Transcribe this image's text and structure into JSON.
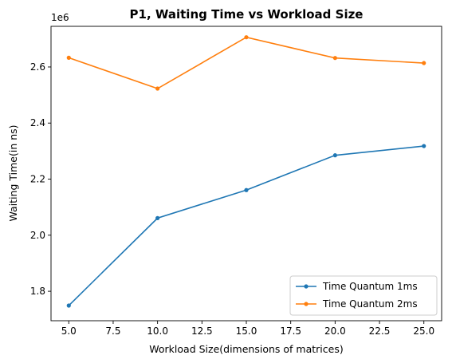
{
  "chart_data": {
    "type": "line",
    "title": "P1, Waiting Time vs Workload Size",
    "xlabel": "Workload Size(dimensions of matrices)",
    "ylabel": "Waiting Time(in ns)",
    "y_offset_label": "1e6",
    "x": [
      5,
      10,
      15,
      20,
      25
    ],
    "xlim": [
      4.0,
      26.0
    ],
    "ylim": [
      1.695,
      2.745
    ],
    "x_ticks": [
      5.0,
      7.5,
      10.0,
      12.5,
      15.0,
      17.5,
      20.0,
      22.5,
      25.0
    ],
    "x_tick_labels": [
      "5.0",
      "7.5",
      "10.0",
      "12.5",
      "15.0",
      "17.5",
      "20.0",
      "22.5",
      "25.0"
    ],
    "y_ticks": [
      1.8,
      2.0,
      2.2,
      2.4,
      2.6
    ],
    "y_tick_labels": [
      "1.8",
      "2.0",
      "2.2",
      "2.4",
      "2.6"
    ],
    "grid": false,
    "legend_position": "lower-right",
    "series": [
      {
        "name": "Time Quantum 1ms",
        "color": "#1f77b4",
        "values": [
          1.749,
          2.061,
          2.161,
          2.285,
          2.318
        ]
      },
      {
        "name": "Time Quantum 2ms",
        "color": "#ff7f0e",
        "values": [
          2.633,
          2.523,
          2.706,
          2.632,
          2.614
        ]
      }
    ]
  }
}
